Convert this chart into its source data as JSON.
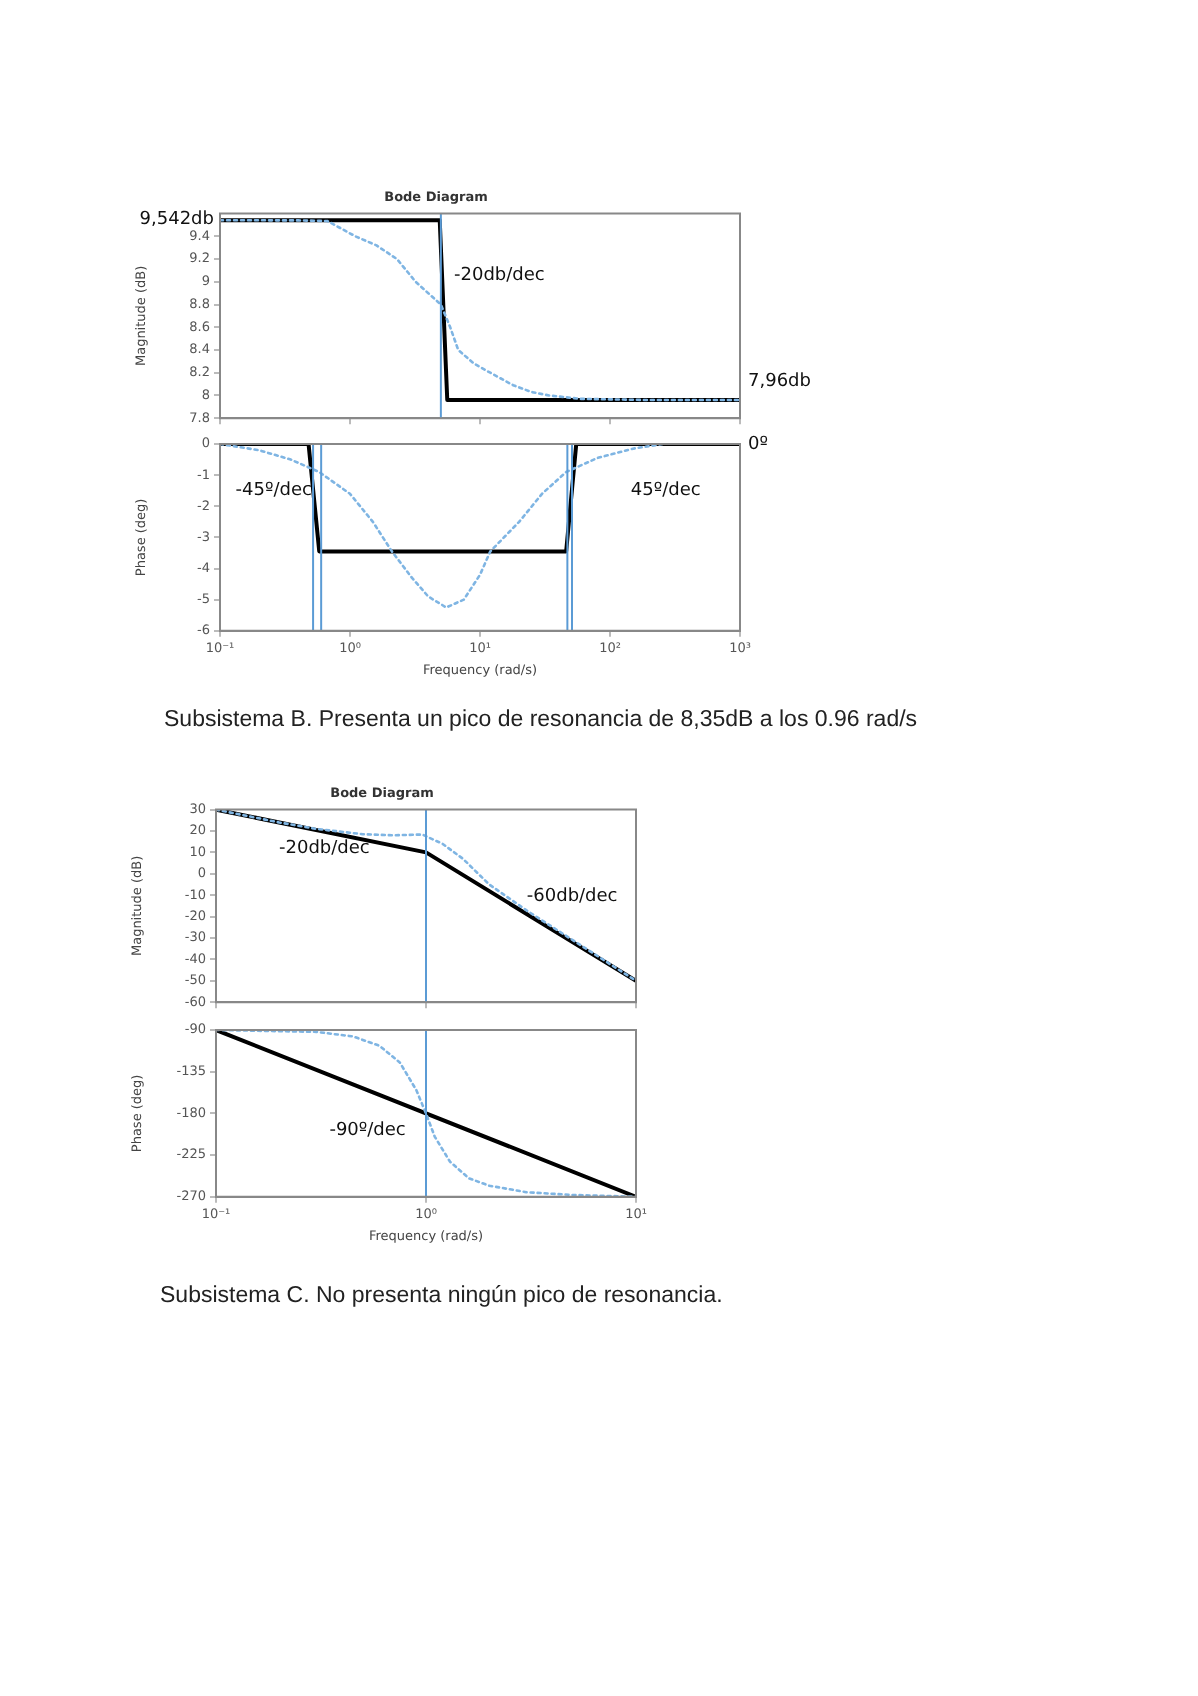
{
  "chart_data": [
    {
      "type": "line",
      "title": "Bode Diagram",
      "ylabel": "Magnitude (dB)",
      "log": "x",
      "tick_labels": "y",
      "grid": false,
      "legend": false,
      "marker": "none",
      "xlim": [
        0.1,
        1000
      ],
      "xticks": [
        {
          "value": 0.1,
          "label": null
        },
        {
          "value": 1,
          "label": null
        },
        {
          "value": 10,
          "label": null
        },
        {
          "value": 100,
          "label": null
        },
        {
          "value": 1000,
          "label": null
        }
      ],
      "ylim": [
        7.8,
        9.6
      ],
      "yticks": [
        7.8,
        8,
        8.2,
        8.4,
        8.6,
        8.8,
        9,
        9.2,
        9.4
      ],
      "series": [
        {
          "color": "#7fb5e3",
          "line_style": "dotted",
          "x": [
            0.1,
            0.4,
            0.67,
            1.1,
            1.6,
            2.3,
            3.2,
            4,
            5,
            5.9,
            6.8,
            9,
            12,
            18,
            25,
            34,
            60,
            200,
            1000
          ],
          "values": [
            9.542,
            9.54,
            9.535,
            9.4,
            9.32,
            9.2,
            9,
            8.9,
            8.8,
            8.6,
            8.4,
            8.28,
            8.2,
            8.09,
            8.03,
            8,
            7.97,
            7.96,
            7.96
          ]
        },
        {
          "color": "#000000",
          "line_style": "solid",
          "x": [
            0.1,
            4.9,
            5.6,
            1000
          ],
          "values": [
            9.542,
            9.542,
            7.96,
            7.96
          ]
        }
      ],
      "ref_lines": [
        {
          "axis": "x",
          "value": 5,
          "color": "#5b9bd5"
        }
      ],
      "annotations": [
        "9,542db",
        "7,96db",
        "-20db/dec"
      ]
    },
    {
      "type": "line",
      "ylabel": "Phase (deg)",
      "xlabel": "Frequency (rad/s)",
      "log": "x",
      "grid": false,
      "legend": false,
      "marker": "none",
      "xlim": [
        0.1,
        1000
      ],
      "xticks": [
        {
          "value": 0.1,
          "label": "10⁻¹"
        },
        {
          "value": 1,
          "label": "10⁰"
        },
        {
          "value": 10,
          "label": "10¹"
        },
        {
          "value": 100,
          "label": "10²"
        },
        {
          "value": 1000,
          "label": "10³"
        }
      ],
      "ylim": [
        -6,
        0
      ],
      "yticks": [
        -6,
        -5,
        -4,
        -3,
        -2,
        -1,
        0
      ],
      "series": [
        {
          "color": "#7fb5e3",
          "line_style": "dotted",
          "x": [
            0.1,
            0.2,
            0.35,
            0.58,
            1,
            1.5,
            2.1,
            3,
            4,
            5.5,
            7.5,
            10,
            12,
            20,
            30,
            46,
            80,
            150,
            255
          ],
          "values": [
            0,
            -0.2,
            -0.5,
            -0.9,
            -1.6,
            -2.5,
            -3.45,
            -4.3,
            -4.9,
            -5.25,
            -5.0,
            -4.2,
            -3.45,
            -2.5,
            -1.6,
            -0.9,
            -0.45,
            -0.15,
            0
          ]
        },
        {
          "color": "#000000",
          "line_style": "solid",
          "x": [
            0.1,
            0.48,
            0.58,
            46,
            55,
            1000
          ],
          "values": [
            0,
            0,
            -3.45,
            -3.45,
            0,
            0
          ]
        }
      ],
      "ref_lines": [
        {
          "axis": "x",
          "value": 0.52,
          "color": "#5b9bd5"
        },
        {
          "axis": "x",
          "value": 0.6,
          "color": "#5b9bd5"
        },
        {
          "axis": "x",
          "value": 47,
          "color": "#5b9bd5"
        },
        {
          "axis": "x",
          "value": 51,
          "color": "#5b9bd5"
        }
      ],
      "annotations": [
        "0º",
        "-45º/dec",
        "45º/dec",
        "Subsistema B. Presenta un pico de resonancia de 8,35dB a los 0.96 rad/s"
      ]
    },
    {
      "type": "line",
      "title": "Bode Diagram",
      "ylabel": "Magnitude (dB)",
      "log": "x",
      "tick_labels": "y",
      "grid": false,
      "legend": false,
      "marker": "none",
      "xlim": [
        0.1,
        10
      ],
      "xticks": [
        {
          "value": 0.1,
          "label": null
        },
        {
          "value": 1,
          "label": null
        },
        {
          "value": 10,
          "label": null
        }
      ],
      "ylim": [
        -60,
        30
      ],
      "yticks": [
        -60,
        -50,
        -40,
        -30,
        -20,
        -10,
        0,
        10,
        20,
        30
      ],
      "series": [
        {
          "color": "#7fb5e3",
          "line_style": "dotted",
          "x": [
            0.1,
            0.2,
            0.3,
            0.5,
            0.7,
            0.96,
            1.2,
            1.5,
            2,
            3,
            5,
            10
          ],
          "values": [
            30,
            24,
            21,
            18.5,
            18,
            18.35,
            14,
            7,
            -5,
            -17,
            -31,
            -50
          ]
        },
        {
          "color": "#000000",
          "line_style": "solid",
          "x": [
            0.1,
            1,
            10
          ],
          "values": [
            30,
            10,
            -50
          ]
        }
      ],
      "ref_lines": [
        {
          "axis": "x",
          "value": 1,
          "color": "#5b9bd5"
        }
      ],
      "annotations": [
        "-20db/dec",
        "-60db/dec"
      ]
    },
    {
      "type": "line",
      "ylabel": "Phase (deg)",
      "xlabel": "Frequency (rad/s)",
      "log": "x",
      "grid": false,
      "legend": false,
      "marker": "none",
      "xlim": [
        0.1,
        10
      ],
      "xticks": [
        {
          "value": 0.1,
          "label": "10⁻¹"
        },
        {
          "value": 1,
          "label": "10⁰"
        },
        {
          "value": 10,
          "label": "10¹"
        }
      ],
      "ylim": [
        -270,
        -90
      ],
      "yticks": [
        -270,
        -225,
        -180,
        -135,
        -90
      ],
      "series": [
        {
          "color": "#7fb5e3",
          "line_style": "dotted",
          "x": [
            0.1,
            0.3,
            0.45,
            0.6,
            0.75,
            0.9,
            1,
            1.1,
            1.3,
            1.6,
            2,
            3,
            5,
            10
          ],
          "values": [
            -90,
            -92,
            -97,
            -107,
            -125,
            -155,
            -180,
            -205,
            -232,
            -250,
            -258,
            -265,
            -268,
            -270
          ]
        },
        {
          "color": "#000000",
          "line_style": "solid",
          "x": [
            0.1,
            10
          ],
          "values": [
            -90,
            -270
          ]
        }
      ],
      "ref_lines": [
        {
          "axis": "x",
          "value": 1,
          "color": "#5b9bd5"
        }
      ],
      "annotations": [
        "-90º/dec",
        "Subsistema C. No presenta ningún pico de resonancia."
      ]
    }
  ]
}
